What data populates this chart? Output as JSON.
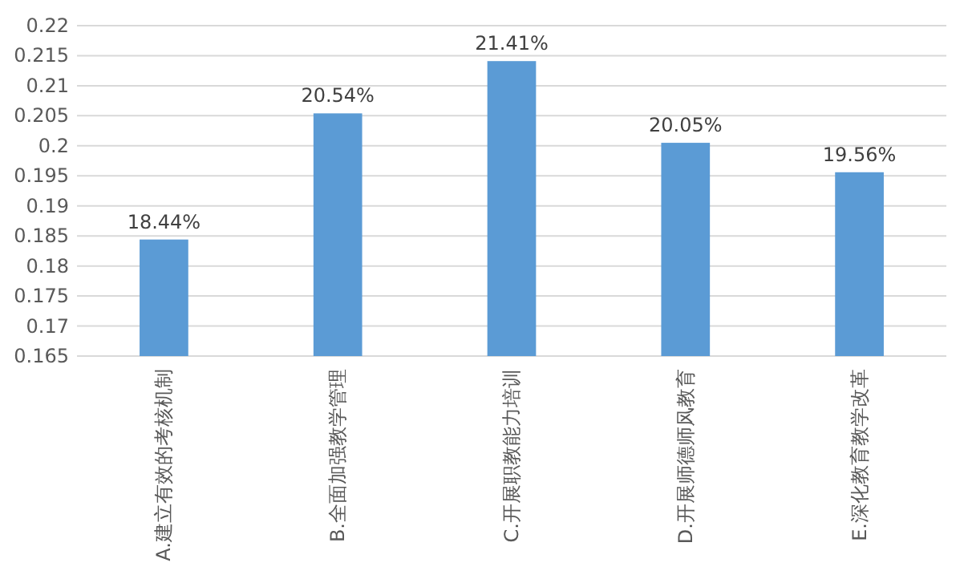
{
  "chart_data": {
    "type": "bar",
    "categories": [
      "A.建立有效的考核机制",
      "B.全面加强教学管理",
      "C.开展职教能力培训",
      "D.开展师德师风教育",
      "E.深化教育教学改革"
    ],
    "values": [
      0.1844,
      0.2054,
      0.2141,
      0.2005,
      0.1956
    ],
    "value_labels": [
      "18.44%",
      "20.54%",
      "21.41%",
      "20.05%",
      "19.56%"
    ],
    "color": "#5b9bd5",
    "ylim": [
      0.165,
      0.22
    ],
    "yticks": [
      0.165,
      0.17,
      0.175,
      0.18,
      0.185,
      0.19,
      0.195,
      0.2,
      0.205,
      0.21,
      0.215,
      0.22
    ],
    "grid": "y"
  }
}
